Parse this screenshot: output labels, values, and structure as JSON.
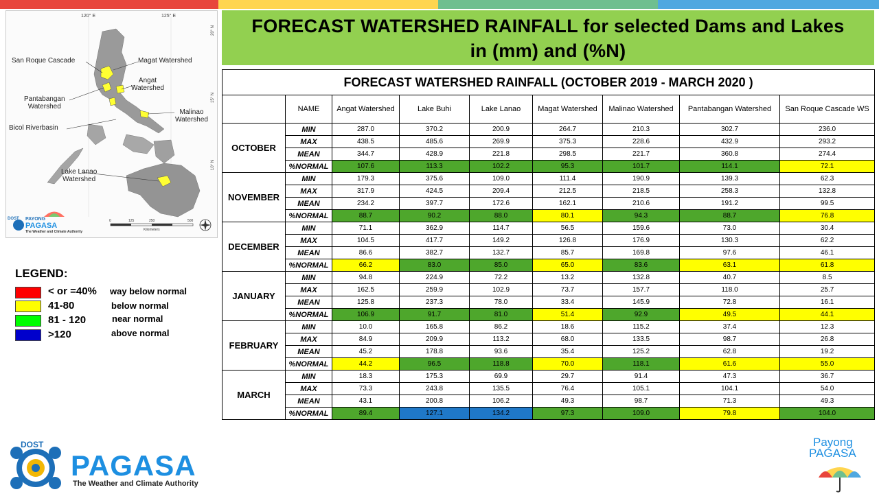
{
  "colors": {
    "bar": [
      "#e8463c",
      "#ffd54f",
      "#6fbf8f",
      "#4fa8e0"
    ],
    "title_bg": "#92d050",
    "green": "#4ea72c",
    "yellow": "#ffff00",
    "blue": "#1f78c8"
  },
  "title": {
    "line1": "FORECAST  WATERSHED  RAINFALL   for selected Dams and Lakes",
    "line2": "in (mm) and (%N)"
  },
  "map": {
    "lon_labels": [
      "120° E",
      "125° E"
    ],
    "lat_labels": [
      "20° N",
      "15° N",
      "10° N"
    ],
    "labels": {
      "san_roque": "San Roque Cascade",
      "magat": "Magat Watershed",
      "angat": "Angat\nWatershed",
      "pantabangan": "Pantabangan\nWatershed",
      "malinao": "Malinao\nWatershed",
      "bicol": "Bicol Riverbasin",
      "lanao": "Lake Lanao\nWatershed"
    },
    "scale": [
      "0",
      "125",
      "250",
      "500"
    ],
    "scale_unit": "Kilometers",
    "logo_dost": "DOST",
    "logo_payong": "PAYONG",
    "logo_pagasa": "PAGASA",
    "logo_tagline": "The Weather and Climate Authority"
  },
  "table": {
    "title": "FORECAST WATERSHED RAINFALL (OCTOBER 2019 - MARCH 2020 )",
    "name_header": "NAME",
    "columns": [
      "Angat Watershed",
      "Lake Buhi",
      "Lake Lanao",
      "Magat Watershed",
      "Malinao Watershed",
      "Pantabangan Watershed",
      "San Roque Cascade WS"
    ],
    "row_labels": [
      "MIN",
      "MAX",
      "MEAN",
      "%NORMAL"
    ],
    "months": [
      {
        "name": "OCTOBER",
        "min": [
          "287.0",
          "370.2",
          "200.9",
          "264.7",
          "210.3",
          "302.7",
          "236.0"
        ],
        "max": [
          "438.5",
          "485.6",
          "269.9",
          "375.3",
          "228.6",
          "432.9",
          "293.2"
        ],
        "mean": [
          "344.7",
          "428.9",
          "221.8",
          "298.5",
          "221.7",
          "360.8",
          "274.4"
        ],
        "normal": [
          "107.6",
          "113.3",
          "102.2",
          "95.3",
          "101.7",
          "114.1",
          "72.1"
        ],
        "normal_colors": [
          "green",
          "green",
          "green",
          "green",
          "green",
          "green",
          "yellow"
        ]
      },
      {
        "name": "NOVEMBER",
        "min": [
          "179.3",
          "375.6",
          "109.0",
          "111.4",
          "190.9",
          "139.3",
          "62.3"
        ],
        "max": [
          "317.9",
          "424.5",
          "209.4",
          "212.5",
          "218.5",
          "258.3",
          "132.8"
        ],
        "mean": [
          "234.2",
          "397.7",
          "172.6",
          "162.1",
          "210.6",
          "191.2",
          "99.5"
        ],
        "normal": [
          "88.7",
          "90.2",
          "88.0",
          "80.1",
          "94.3",
          "88.7",
          "76.8"
        ],
        "normal_colors": [
          "green",
          "green",
          "green",
          "yellow",
          "green",
          "green",
          "yellow"
        ]
      },
      {
        "name": "DECEMBER",
        "min": [
          "71.1",
          "362.9",
          "114.7",
          "56.5",
          "159.6",
          "73.0",
          "30.4"
        ],
        "max": [
          "104.5",
          "417.7",
          "149.2",
          "126.8",
          "176.9",
          "130.3",
          "62.2"
        ],
        "mean": [
          "86.6",
          "382.7",
          "132.7",
          "85.7",
          "169.8",
          "97.6",
          "46.1"
        ],
        "normal": [
          "66.2",
          "83.0",
          "85.0",
          "65.0",
          "83.6",
          "63.1",
          "61.8"
        ],
        "normal_colors": [
          "yellow",
          "green",
          "green",
          "yellow",
          "green",
          "yellow",
          "yellow"
        ]
      },
      {
        "name": "JANUARY",
        "min": [
          "94.8",
          "224.9",
          "72.2",
          "13.2",
          "132.8",
          "40.7",
          "8.5"
        ],
        "max": [
          "162.5",
          "259.9",
          "102.9",
          "73.7",
          "157.7",
          "118.0",
          "25.7"
        ],
        "mean": [
          "125.8",
          "237.3",
          "78.0",
          "33.4",
          "145.9",
          "72.8",
          "16.1"
        ],
        "normal": [
          "106.9",
          "91.7",
          "81.0",
          "51.4",
          "92.9",
          "49.5",
          "44.1"
        ],
        "normal_colors": [
          "green",
          "green",
          "green",
          "yellow",
          "green",
          "yellow",
          "yellow"
        ]
      },
      {
        "name": "FEBRUARY",
        "min": [
          "10.0",
          "165.8",
          "86.2",
          "18.6",
          "115.2",
          "37.4",
          "12.3"
        ],
        "max": [
          "84.9",
          "209.9",
          "113.2",
          "68.0",
          "133.5",
          "98.7",
          "26.8"
        ],
        "mean": [
          "45.2",
          "178.8",
          "93.6",
          "35.4",
          "125.2",
          "62.8",
          "19.2"
        ],
        "normal": [
          "44.2",
          "96.5",
          "118.8",
          "70.0",
          "118.1",
          "61.6",
          "55.0"
        ],
        "normal_colors": [
          "yellow",
          "green",
          "green",
          "yellow",
          "green",
          "yellow",
          "yellow"
        ]
      },
      {
        "name": "MARCH",
        "min": [
          "18.3",
          "175.3",
          "69.9",
          "29.7",
          "91.4",
          "47.3",
          "36.7"
        ],
        "max": [
          "73.3",
          "243.8",
          "135.5",
          "76.4",
          "105.1",
          "104.1",
          "54.0"
        ],
        "mean": [
          "43.1",
          "200.8",
          "106.2",
          "49.3",
          "98.7",
          "71.3",
          "49.3"
        ],
        "normal": [
          "89.4",
          "127.1",
          "134.2",
          "97.3",
          "109.0",
          "79.8",
          "104.0"
        ],
        "normal_colors": [
          "green",
          "blue",
          "blue",
          "green",
          "green",
          "yellow",
          "green"
        ]
      }
    ]
  },
  "legend": {
    "title": "LEGEND:",
    "items": [
      {
        "range": "< or =40%",
        "desc": "way below normal",
        "color": "#ff0000"
      },
      {
        "range": "41-80",
        "desc": "below normal",
        "color": "#ffff00"
      },
      {
        "range": "81 - 120",
        "desc": "near normal",
        "color": "#00ff00"
      },
      {
        "range": ">120",
        "desc": "above normal",
        "color": "#0000cc"
      }
    ]
  },
  "footer": {
    "dost": "DOST",
    "pagasa": "PAGASA",
    "tagline": "The Weather and Climate Authority",
    "payong1": "Payong",
    "payong2": "PAGASA"
  }
}
